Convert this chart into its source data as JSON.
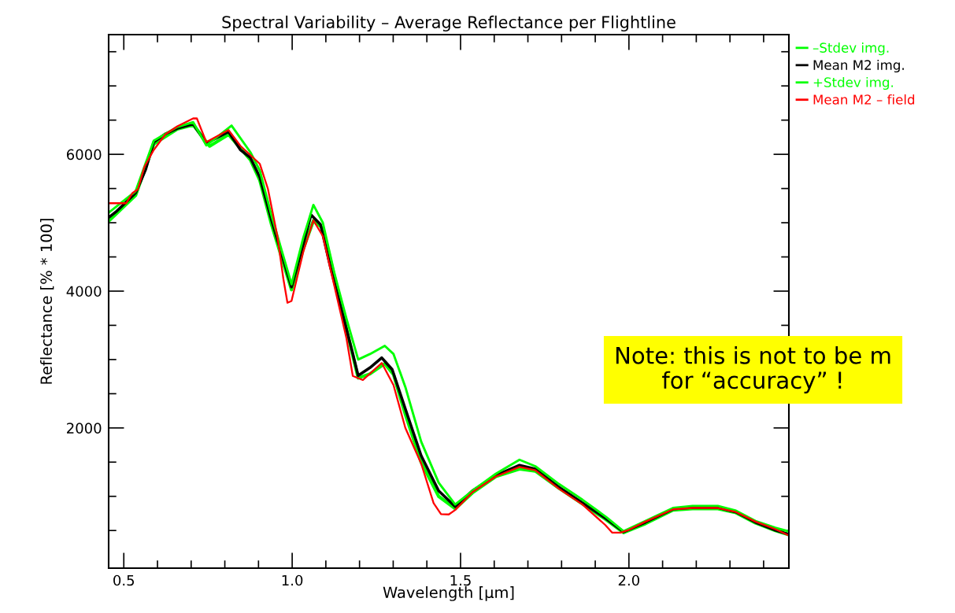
{
  "chart_data": {
    "type": "line",
    "title": "Spectral Variability – Average Reflectance per Flightline",
    "xlabel": "Wavelength [μm]",
    "ylabel": "Reflectance [% * 100]",
    "xlim": [
      0.455,
      2.475
    ],
    "ylim": [
      -50,
      7750
    ],
    "xticks": [
      0.5,
      {
        "value": 0.6,
        "label": null
      },
      {
        "value": 0.7,
        "label": null
      },
      {
        "value": 0.8,
        "label": null
      },
      {
        "value": 0.9,
        "label": null
      },
      {
        "value": 1.0,
        "label": "1.0"
      },
      {
        "value": 1.1,
        "label": null
      },
      {
        "value": 1.2,
        "label": null
      },
      {
        "value": 1.3,
        "label": null
      },
      {
        "value": 1.4,
        "label": null
      },
      1.5,
      {
        "value": 1.6,
        "label": null
      },
      {
        "value": 1.7,
        "label": null
      },
      {
        "value": 1.8,
        "label": null
      },
      {
        "value": 1.9,
        "label": null
      },
      {
        "value": 2.0,
        "label": "2.0"
      },
      {
        "value": 2.1,
        "label": null
      },
      {
        "value": 2.2,
        "label": null
      },
      {
        "value": 2.3,
        "label": null
      },
      {
        "value": 2.4,
        "label": null
      }
    ],
    "yticks": [
      {
        "value": 500,
        "label": null
      },
      {
        "value": 1000,
        "label": null
      },
      {
        "value": 1500,
        "label": null
      },
      2000,
      {
        "value": 2500,
        "label": null
      },
      {
        "value": 3000,
        "label": null
      },
      {
        "value": 3500,
        "label": null
      },
      4000,
      {
        "value": 4500,
        "label": null
      },
      {
        "value": 5000,
        "label": null
      },
      {
        "value": 5500,
        "label": null
      },
      6000,
      {
        "value": 6500,
        "label": null
      },
      {
        "value": 7000,
        "label": null
      },
      {
        "value": 7500,
        "label": null
      }
    ],
    "grid": false,
    "legend": "top right",
    "marker": "none",
    "line_style": "solid",
    "annotations": [
      "Note: this is not to be m\nfor “accuracy” !"
    ],
    "series": [
      {
        "name": "–Stdev img.",
        "color": "#00ff00",
        "x": [
          0.456,
          0.535,
          0.589,
          0.659,
          0.706,
          0.755,
          0.811,
          0.876,
          0.904,
          0.939,
          0.998,
          1.033,
          1.063,
          1.091,
          1.126,
          1.161,
          1.196,
          1.231,
          1.275,
          1.301,
          1.336,
          1.383,
          1.435,
          1.484,
          1.535,
          1.605,
          1.675,
          1.722,
          1.792,
          1.862,
          1.932,
          1.984,
          2.049,
          2.131,
          2.189,
          2.264,
          2.318,
          2.376,
          2.435,
          2.474
        ],
        "values": [
          5030,
          5400,
          6150,
          6370,
          6430,
          6120,
          6290,
          5920,
          5620,
          4970,
          4020,
          4620,
          5030,
          4920,
          4200,
          3450,
          2730,
          2790,
          2940,
          2780,
          2200,
          1500,
          1000,
          820,
          1050,
          1290,
          1400,
          1370,
          1120,
          890,
          660,
          470,
          600,
          800,
          820,
          820,
          760,
          610,
          500,
          440
        ]
      },
      {
        "name": "Mean M2 img.",
        "color": "#000000",
        "x": [
          0.456,
          0.479,
          0.535,
          0.565,
          0.589,
          0.624,
          0.659,
          0.706,
          0.745,
          0.811,
          0.846,
          0.876,
          0.904,
          0.939,
          0.998,
          1.033,
          1.056,
          1.084,
          1.114,
          1.15,
          1.18,
          1.196,
          1.231,
          1.266,
          1.297,
          1.336,
          1.383,
          1.435,
          1.484,
          1.535,
          1.605,
          1.675,
          1.722,
          1.792,
          1.862,
          1.932,
          1.984,
          2.049,
          2.131,
          2.189,
          2.264,
          2.318,
          2.376,
          2.435,
          2.474
        ],
        "values": [
          5080,
          5170,
          5435,
          5780,
          6180,
          6300,
          6380,
          6445,
          6160,
          6330,
          6067,
          5950,
          5665,
          5035,
          4060,
          4690,
          5115,
          4975,
          4345,
          3660,
          3085,
          2765,
          2880,
          3025,
          2855,
          2280,
          1595,
          1080,
          850,
          1080,
          1305,
          1455,
          1400,
          1135,
          905,
          675,
          480,
          620,
          815,
          835,
          835,
          770,
          620,
          505,
          445
        ]
      },
      {
        "name": "+Stdev img.",
        "color": "#00ff00",
        "x": [
          0.456,
          0.535,
          0.589,
          0.659,
          0.706,
          0.745,
          0.82,
          0.876,
          0.904,
          0.939,
          0.998,
          1.033,
          1.063,
          1.091,
          1.126,
          1.161,
          1.196,
          1.231,
          1.275,
          1.301,
          1.336,
          1.383,
          1.435,
          1.484,
          1.535,
          1.605,
          1.675,
          1.722,
          1.792,
          1.862,
          1.932,
          1.984,
          2.049,
          2.131,
          2.189,
          2.264,
          2.318,
          2.376,
          2.435,
          2.474
        ],
        "values": [
          5150,
          5460,
          6200,
          6400,
          6470,
          6130,
          6420,
          6030,
          5760,
          5100,
          4100,
          4780,
          5260,
          5000,
          4250,
          3600,
          3000,
          3080,
          3200,
          3080,
          2600,
          1800,
          1200,
          880,
          1080,
          1330,
          1535,
          1440,
          1180,
          950,
          700,
          490,
          640,
          830,
          860,
          860,
          790,
          640,
          540,
          490
        ]
      },
      {
        "name": "Mean M2 – field",
        "color": "#ff0000",
        "x": [
          0.456,
          0.507,
          0.526,
          0.542,
          0.561,
          0.589,
          0.624,
          0.659,
          0.706,
          0.717,
          0.745,
          0.811,
          0.846,
          0.904,
          0.928,
          0.956,
          0.974,
          0.986,
          0.998,
          1.033,
          1.063,
          1.091,
          1.126,
          1.161,
          1.18,
          1.21,
          1.266,
          1.301,
          1.336,
          1.383,
          1.42,
          1.442,
          1.465,
          1.484,
          1.535,
          1.605,
          1.675,
          1.722,
          1.792,
          1.862,
          1.93,
          1.95,
          1.975,
          2.0,
          2.049,
          2.131,
          2.189,
          2.264,
          2.318,
          2.376,
          2.435,
          2.474
        ],
        "values": [
          5285,
          5285,
          5435,
          5490,
          5815,
          6065,
          6295,
          6410,
          6525,
          6525,
          6180,
          6355,
          6125,
          5860,
          5495,
          4805,
          4175,
          3830,
          3855,
          4575,
          5035,
          4805,
          4060,
          3315,
          2760,
          2700,
          2950,
          2625,
          2000,
          1480,
          900,
          740,
          735,
          800,
          1060,
          1290,
          1430,
          1380,
          1110,
          880,
          580,
          470,
          470,
          510,
          630,
          810,
          830,
          830,
          770,
          630,
          520,
          430
        ]
      }
    ]
  }
}
